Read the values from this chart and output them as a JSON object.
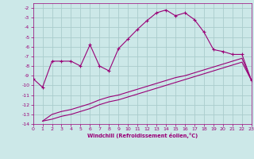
{
  "xlabel": "Windchill (Refroidissement éolien,°C)",
  "background_color": "#cce8e8",
  "grid_color": "#aacccc",
  "line_color": "#990077",
  "xlim": [
    0,
    23
  ],
  "ylim": [
    -14,
    -1.5
  ],
  "xticks": [
    0,
    1,
    2,
    3,
    4,
    5,
    6,
    7,
    8,
    9,
    10,
    11,
    12,
    13,
    14,
    15,
    16,
    17,
    18,
    19,
    20,
    21,
    22,
    23
  ],
  "yticks": [
    -2,
    -3,
    -4,
    -5,
    -6,
    -7,
    -8,
    -9,
    -10,
    -11,
    -12,
    -13,
    -14
  ],
  "series1_x": [
    0,
    1,
    2,
    3,
    4,
    5,
    6,
    7,
    8,
    9,
    10,
    11,
    12,
    13,
    14,
    15,
    16,
    17,
    18,
    19,
    20,
    21,
    22,
    23
  ],
  "series1_y": [
    -9.3,
    -10.2,
    -7.5,
    -7.5,
    -7.5,
    -8.0,
    -5.8,
    -8.0,
    -8.5,
    -6.2,
    -5.2,
    -4.2,
    -3.3,
    -2.5,
    -2.2,
    -2.8,
    -2.5,
    -3.2,
    -4.5,
    -6.3,
    -6.5,
    -6.8,
    -6.8,
    -9.5
  ],
  "series2_x": [
    1,
    2,
    3,
    4,
    5,
    6,
    7,
    8,
    9,
    10,
    11,
    12,
    13,
    14,
    15,
    16,
    17,
    18,
    19,
    20,
    21,
    22,
    23
  ],
  "series2_y": [
    -13.7,
    -13.0,
    -12.7,
    -12.5,
    -12.2,
    -11.9,
    -11.5,
    -11.2,
    -11.0,
    -10.7,
    -10.4,
    -10.1,
    -9.8,
    -9.5,
    -9.2,
    -9.0,
    -8.7,
    -8.4,
    -8.1,
    -7.8,
    -7.5,
    -7.2,
    -9.5
  ],
  "series3_x": [
    1,
    2,
    3,
    4,
    5,
    6,
    7,
    8,
    9,
    10,
    11,
    12,
    13,
    14,
    15,
    16,
    17,
    18,
    19,
    20,
    21,
    22,
    23
  ],
  "series3_y": [
    -13.7,
    -13.5,
    -13.2,
    -13.0,
    -12.7,
    -12.4,
    -12.0,
    -11.7,
    -11.5,
    -11.2,
    -10.9,
    -10.6,
    -10.3,
    -10.0,
    -9.7,
    -9.4,
    -9.1,
    -8.8,
    -8.5,
    -8.2,
    -7.9,
    -7.6,
    -9.5
  ]
}
